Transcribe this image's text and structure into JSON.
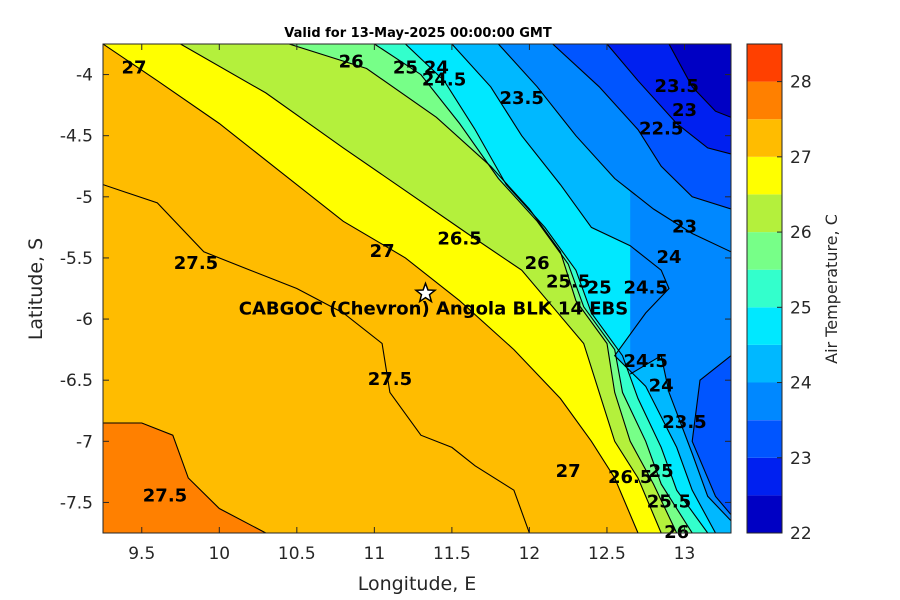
{
  "chart_data": {
    "type": "heatmap",
    "subtype": "filled-contour",
    "title": "Valid for 13-May-2025 00:00:00 GMT",
    "xlabel": "Longitude, E",
    "ylabel": "Latitude, S",
    "xlim": [
      9.25,
      13.3
    ],
    "ylim": [
      -7.75,
      -3.75
    ],
    "xticks": [
      9.5,
      10,
      10.5,
      11,
      11.5,
      12,
      12.5,
      13
    ],
    "xtick_labels": [
      "9.5",
      "10",
      "10.5",
      "11",
      "11.5",
      "12",
      "12.5",
      "13"
    ],
    "yticks": [
      -4,
      -4.5,
      -5,
      -5.5,
      -6,
      -6.5,
      -7,
      -7.5
    ],
    "ytick_labels": [
      "-4",
      "-4.5",
      "-5",
      "-5.5",
      "-6",
      "-6.5",
      "-7",
      "-7.5"
    ],
    "colorbar": {
      "label": "Air Temperature, C",
      "range": [
        22,
        28.5
      ],
      "ticks": [
        22,
        23,
        24,
        25,
        26,
        27,
        28
      ],
      "tick_labels": [
        "22",
        "23",
        "24",
        "25",
        "26",
        "27",
        "28"
      ],
      "levels": [
        22,
        22.5,
        23,
        23.5,
        24,
        24.5,
        25,
        25.5,
        26,
        26.5,
        27,
        27.5,
        28,
        28.5
      ],
      "colors": [
        "#0000c4",
        "#0020f0",
        "#0055ff",
        "#0088ff",
        "#00b8ff",
        "#00e8ff",
        "#33ffcc",
        "#77ff88",
        "#b4f03c",
        "#ffff00",
        "#ffbc00",
        "#ff8000",
        "#ff4000",
        "#ff0000"
      ]
    },
    "contour_lines": [
      {
        "value": 27.5,
        "points": [
          [
            9.25,
            -4.9
          ],
          [
            9.6,
            -5.05
          ],
          [
            9.9,
            -5.45
          ],
          [
            10.2,
            -5.6
          ],
          [
            10.5,
            -5.75
          ],
          [
            10.8,
            -5.95
          ],
          [
            11.05,
            -6.2
          ],
          [
            11.1,
            -6.6
          ],
          [
            11.3,
            -6.95
          ],
          [
            11.5,
            -7.05
          ],
          [
            11.65,
            -7.2
          ],
          [
            11.9,
            -7.4
          ],
          [
            12.0,
            -7.75
          ]
        ]
      },
      {
        "value": 27.5,
        "points": [
          [
            9.25,
            -6.85
          ],
          [
            9.5,
            -6.85
          ],
          [
            9.7,
            -6.95
          ],
          [
            9.8,
            -7.3
          ],
          [
            10.0,
            -7.55
          ],
          [
            10.3,
            -7.75
          ]
        ]
      },
      {
        "value": 27,
        "points": [
          [
            9.25,
            -3.75
          ],
          [
            9.6,
            -4.05
          ],
          [
            10.0,
            -4.4
          ],
          [
            10.4,
            -4.8
          ],
          [
            10.8,
            -5.2
          ],
          [
            11.2,
            -5.5
          ],
          [
            11.55,
            -5.85
          ],
          [
            11.9,
            -6.25
          ],
          [
            12.2,
            -6.65
          ],
          [
            12.4,
            -7.0
          ],
          [
            12.55,
            -7.3
          ],
          [
            12.7,
            -7.75
          ]
        ]
      },
      {
        "value": 26.5,
        "points": [
          [
            9.75,
            -3.75
          ],
          [
            10.3,
            -4.15
          ],
          [
            10.8,
            -4.6
          ],
          [
            11.2,
            -4.95
          ],
          [
            11.6,
            -5.3
          ],
          [
            11.95,
            -5.6
          ],
          [
            12.15,
            -5.9
          ],
          [
            12.35,
            -6.2
          ],
          [
            12.45,
            -6.6
          ],
          [
            12.55,
            -7.0
          ],
          [
            12.7,
            -7.3
          ],
          [
            12.85,
            -7.75
          ]
        ]
      },
      {
        "value": 26,
        "points": [
          [
            10.45,
            -3.75
          ],
          [
            10.95,
            -3.95
          ],
          [
            11.4,
            -4.35
          ],
          [
            11.75,
            -4.75
          ],
          [
            12.0,
            -5.1
          ],
          [
            12.2,
            -5.45
          ],
          [
            12.3,
            -5.85
          ],
          [
            12.5,
            -6.2
          ],
          [
            12.55,
            -6.6
          ],
          [
            12.65,
            -7.0
          ],
          [
            12.8,
            -7.35
          ],
          [
            12.95,
            -7.75
          ]
        ]
      },
      {
        "value": 25.5,
        "points": [
          [
            11.0,
            -3.75
          ],
          [
            11.3,
            -4.0
          ],
          [
            11.55,
            -4.4
          ],
          [
            11.8,
            -4.85
          ],
          [
            12.05,
            -5.2
          ],
          [
            12.25,
            -5.55
          ],
          [
            12.35,
            -5.9
          ],
          [
            12.55,
            -6.25
          ],
          [
            12.6,
            -6.6
          ],
          [
            12.75,
            -7.0
          ],
          [
            12.85,
            -7.35
          ],
          [
            13.05,
            -7.75
          ]
        ]
      },
      {
        "value": 25,
        "points": [
          [
            11.2,
            -3.75
          ],
          [
            11.45,
            -4.05
          ],
          [
            11.65,
            -4.45
          ],
          [
            11.85,
            -4.9
          ],
          [
            12.1,
            -5.25
          ],
          [
            12.3,
            -5.6
          ],
          [
            12.4,
            -5.95
          ],
          [
            12.6,
            -6.3
          ],
          [
            12.7,
            -6.65
          ],
          [
            12.85,
            -7.05
          ],
          [
            12.95,
            -7.4
          ],
          [
            13.15,
            -7.75
          ]
        ]
      },
      {
        "value": 24.5,
        "points": [
          [
            11.5,
            -3.75
          ],
          [
            11.75,
            -4.1
          ],
          [
            11.95,
            -4.5
          ],
          [
            12.2,
            -4.9
          ],
          [
            12.4,
            -5.25
          ],
          [
            12.65,
            -5.4
          ],
          [
            12.85,
            -5.6
          ],
          [
            12.9,
            -5.75
          ],
          [
            12.75,
            -5.95
          ],
          [
            12.55,
            -6.3
          ],
          [
            12.75,
            -6.55
          ],
          [
            12.95,
            -7.05
          ],
          [
            13.05,
            -7.4
          ],
          [
            13.2,
            -7.75
          ]
        ]
      },
      {
        "value": 24,
        "points": [
          [
            11.8,
            -3.75
          ],
          [
            12.05,
            -4.1
          ],
          [
            12.3,
            -4.5
          ],
          [
            12.55,
            -4.85
          ],
          [
            12.8,
            -5.1
          ],
          [
            13.05,
            -5.3
          ],
          [
            13.3,
            -5.45
          ]
        ]
      },
      {
        "value": 24,
        "points": [
          [
            12.65,
            -6.45
          ],
          [
            12.85,
            -6.3
          ],
          [
            12.9,
            -6.6
          ],
          [
            13.05,
            -7.1
          ],
          [
            13.15,
            -7.45
          ],
          [
            13.3,
            -7.65
          ]
        ]
      },
      {
        "value": 23.5,
        "points": [
          [
            12.15,
            -3.75
          ],
          [
            12.45,
            -4.1
          ],
          [
            12.7,
            -4.45
          ],
          [
            12.85,
            -4.75
          ],
          [
            13.05,
            -5.0
          ],
          [
            13.3,
            -5.1
          ]
        ]
      },
      {
        "value": 23.5,
        "points": [
          [
            13.3,
            -6.3
          ],
          [
            13.1,
            -6.5
          ],
          [
            13.05,
            -7.0
          ],
          [
            13.2,
            -7.45
          ],
          [
            13.3,
            -7.6
          ]
        ]
      },
      {
        "value": 23,
        "points": [
          [
            12.5,
            -3.75
          ],
          [
            12.7,
            -4.05
          ],
          [
            12.95,
            -4.4
          ],
          [
            13.15,
            -4.6
          ],
          [
            13.3,
            -4.65
          ]
        ]
      },
      {
        "value": 22.5,
        "points": [
          [
            12.9,
            -3.75
          ],
          [
            13.05,
            -4.1
          ],
          [
            13.2,
            -4.3
          ],
          [
            13.3,
            -4.35
          ]
        ]
      }
    ],
    "contour_labels": [
      {
        "text": "27",
        "x": 9.45,
        "y": -3.95
      },
      {
        "text": "26",
        "x": 10.85,
        "y": -3.9
      },
      {
        "text": "25",
        "x": 11.2,
        "y": -3.95
      },
      {
        "text": "24",
        "x": 11.4,
        "y": -3.95
      },
      {
        "text": "24.5",
        "x": 11.45,
        "y": -4.05
      },
      {
        "text": "23.5",
        "x": 11.95,
        "y": -4.2
      },
      {
        "text": "23.5",
        "x": 12.95,
        "y": -4.1
      },
      {
        "text": "23",
        "x": 13.0,
        "y": -4.3
      },
      {
        "text": "22.5",
        "x": 12.85,
        "y": -4.45
      },
      {
        "text": "27.5",
        "x": 9.85,
        "y": -5.55
      },
      {
        "text": "27",
        "x": 11.05,
        "y": -5.45
      },
      {
        "text": "26.5",
        "x": 11.55,
        "y": -5.35
      },
      {
        "text": "26",
        "x": 12.05,
        "y": -5.55
      },
      {
        "text": "25.5",
        "x": 12.25,
        "y": -5.7
      },
      {
        "text": "25",
        "x": 12.45,
        "y": -5.75
      },
      {
        "text": "24.5",
        "x": 12.75,
        "y": -5.75
      },
      {
        "text": "24",
        "x": 12.9,
        "y": -5.5
      },
      {
        "text": "23",
        "x": 13.0,
        "y": -5.25
      },
      {
        "text": "24.5",
        "x": 12.75,
        "y": -6.35
      },
      {
        "text": "24",
        "x": 12.85,
        "y": -6.55
      },
      {
        "text": "23.5",
        "x": 13.0,
        "y": -6.85
      },
      {
        "text": "27.5",
        "x": 11.1,
        "y": -6.5
      },
      {
        "text": "27",
        "x": 12.25,
        "y": -7.25
      },
      {
        "text": "26.5",
        "x": 12.65,
        "y": -7.3
      },
      {
        "text": "25",
        "x": 12.85,
        "y": -7.25
      },
      {
        "text": "25.5",
        "x": 12.9,
        "y": -7.5
      },
      {
        "text": "26",
        "x": 12.95,
        "y": -7.75
      },
      {
        "text": "27.5",
        "x": 9.65,
        "y": -7.45
      }
    ],
    "annotations": [
      {
        "text": "CABGOC (Chevron)  Angola BLK 14  EBS",
        "x": 11.33,
        "y": -5.79,
        "marker": "star"
      }
    ]
  }
}
